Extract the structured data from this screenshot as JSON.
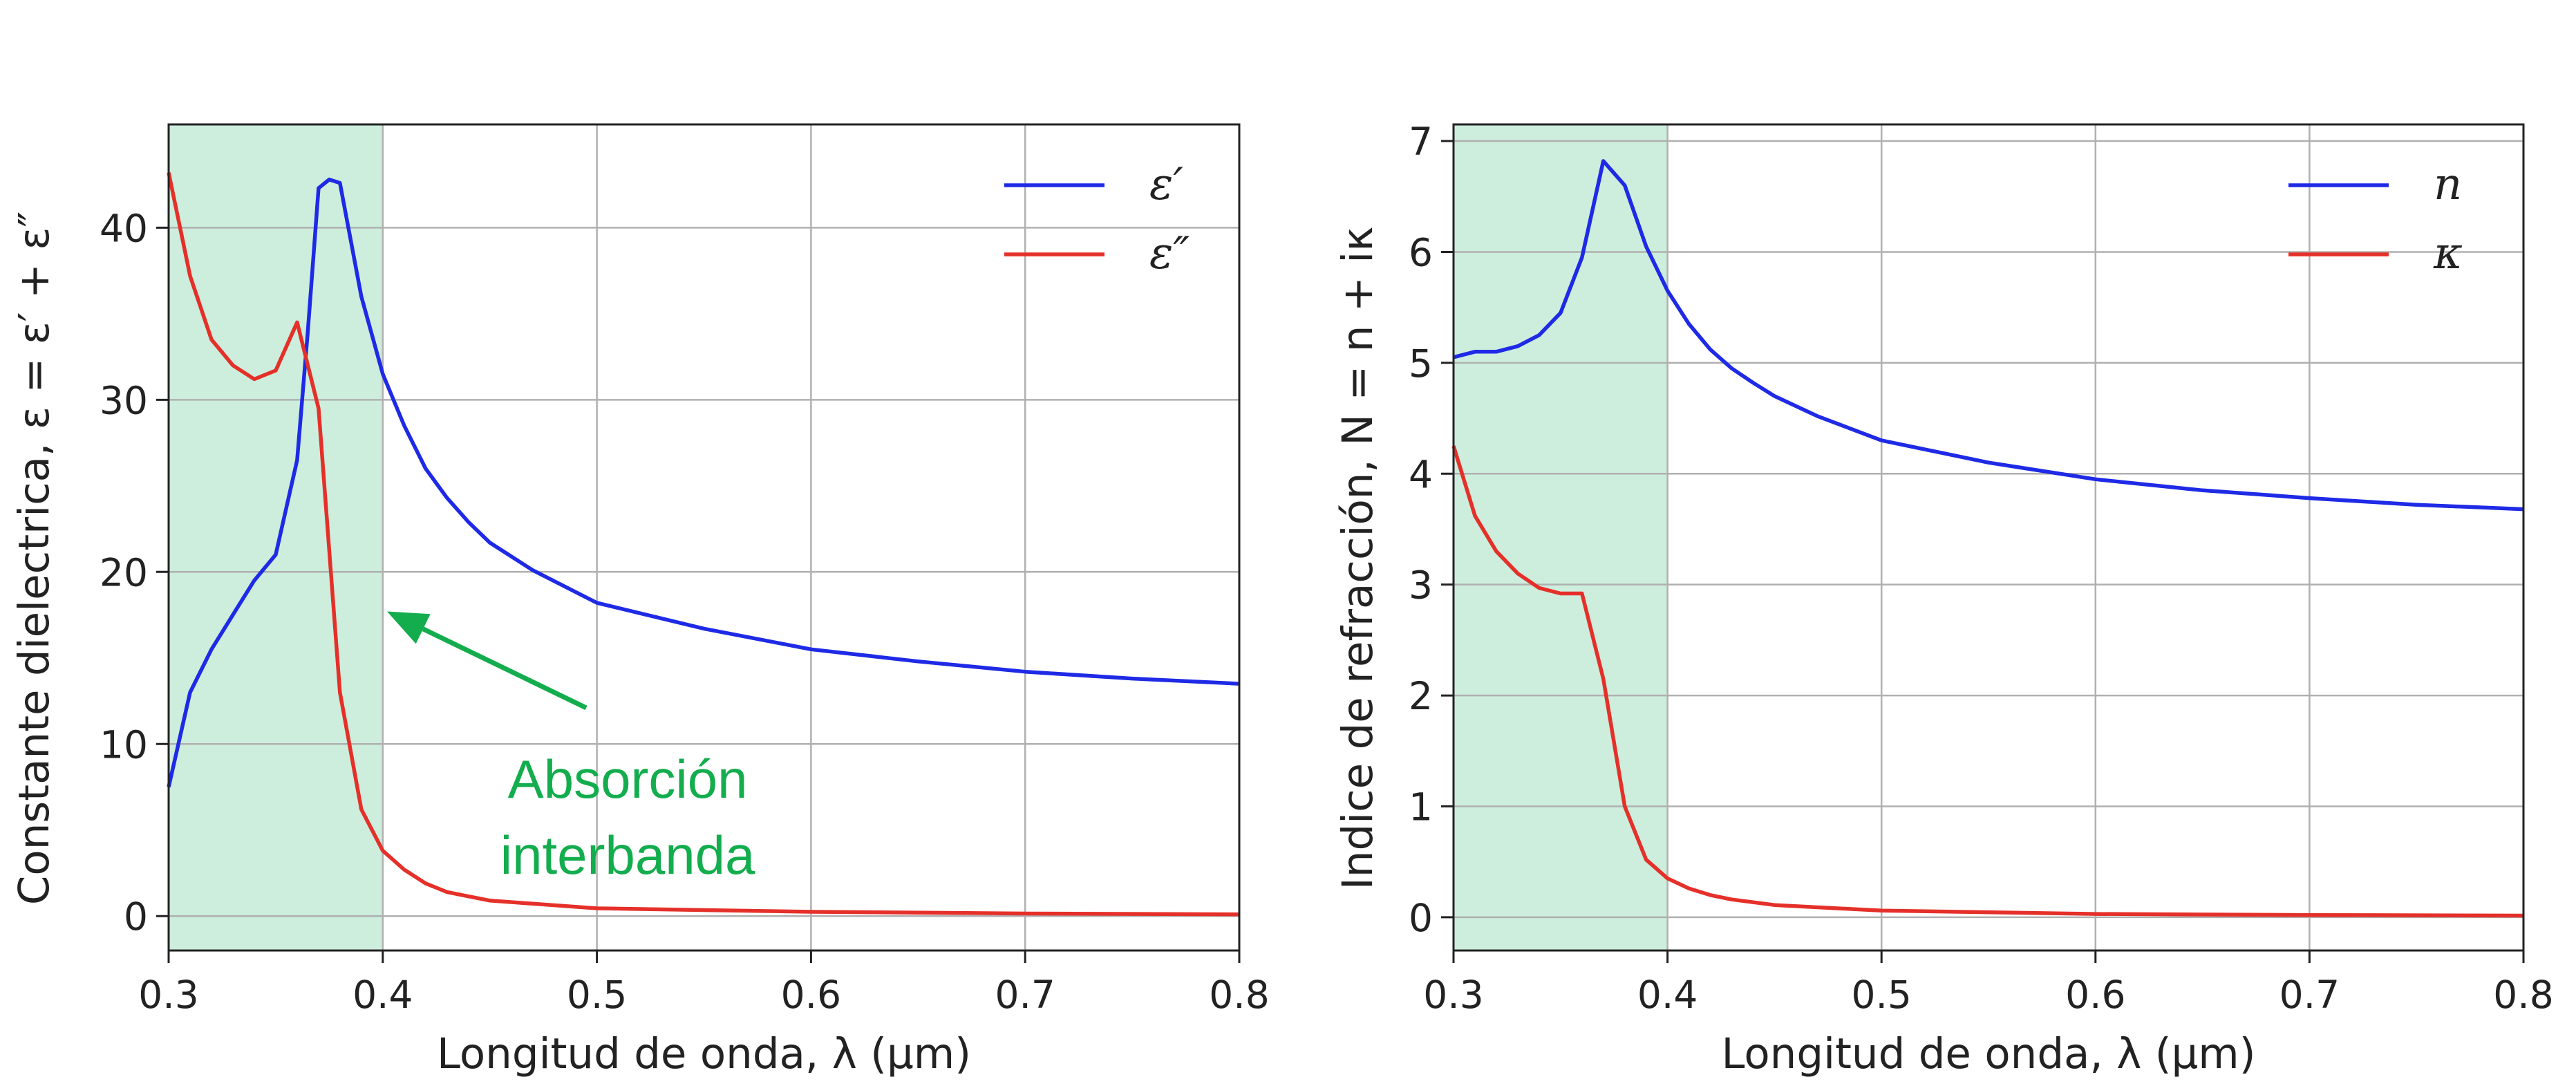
{
  "chart_data": [
    {
      "type": "line",
      "xlabel": "Longitud de onda, λ (μm)",
      "ylabel": "Constante dielectrica, ε = ε′ + ε″",
      "xlim": [
        0.3,
        0.8
      ],
      "ylim": [
        -2,
        46
      ],
      "x_ticks": [
        "0.3",
        "0.4",
        "0.5",
        "0.6",
        "0.7",
        "0.8"
      ],
      "y_ticks": [
        "0",
        "10",
        "20",
        "30",
        "40"
      ],
      "grid": true,
      "legend_position": "top-right",
      "shaded_region": {
        "from": 0.3,
        "to": 0.4,
        "color": "#cdeedd"
      },
      "annotation": {
        "lines": [
          "Absorción",
          "interbanda"
        ],
        "color": "#13ad4e",
        "arrow_to": [
          0.402,
          17.7
        ],
        "arrow_from": [
          0.495,
          12.1
        ]
      },
      "series": [
        {
          "name": "ε′",
          "color": "#1f2ae6",
          "x": [
            0.3,
            0.31,
            0.32,
            0.33,
            0.34,
            0.35,
            0.36,
            0.365,
            0.37,
            0.375,
            0.38,
            0.39,
            0.4,
            0.41,
            0.42,
            0.43,
            0.44,
            0.45,
            0.47,
            0.5,
            0.55,
            0.6,
            0.65,
            0.7,
            0.75,
            0.8
          ],
          "y": [
            7.5,
            13,
            15.5,
            17.5,
            19.5,
            21,
            26.5,
            34,
            42.3,
            42.8,
            42.6,
            36,
            31.5,
            28.5,
            26,
            24.3,
            22.9,
            21.7,
            20.1,
            18.2,
            16.7,
            15.5,
            14.8,
            14.2,
            13.8,
            13.5
          ]
        },
        {
          "name": "ε″",
          "color": "#e5302a",
          "x": [
            0.3,
            0.31,
            0.32,
            0.33,
            0.34,
            0.35,
            0.36,
            0.37,
            0.38,
            0.39,
            0.4,
            0.41,
            0.42,
            0.43,
            0.45,
            0.5,
            0.6,
            0.7,
            0.8
          ],
          "y": [
            43.2,
            37.2,
            33.5,
            32,
            31.2,
            31.7,
            34.5,
            29.5,
            13,
            6.2,
            3.8,
            2.7,
            1.9,
            1.4,
            0.9,
            0.45,
            0.25,
            0.15,
            0.1
          ]
        }
      ]
    },
    {
      "type": "line",
      "xlabel": "Longitud de onda, λ (μm)",
      "ylabel": "Indice de refracción, N = n + iκ",
      "xlim": [
        0.3,
        0.8
      ],
      "ylim": [
        -0.3,
        7.15
      ],
      "x_ticks": [
        "0.3",
        "0.4",
        "0.5",
        "0.6",
        "0.7",
        "0.8"
      ],
      "y_ticks": [
        "0",
        "1",
        "2",
        "3",
        "4",
        "5",
        "6",
        "7"
      ],
      "grid": true,
      "legend_position": "top-right",
      "shaded_region": {
        "from": 0.3,
        "to": 0.4,
        "color": "#cdeedd"
      },
      "series": [
        {
          "name": "n",
          "color": "#1f2ae6",
          "x": [
            0.3,
            0.31,
            0.32,
            0.33,
            0.34,
            0.35,
            0.36,
            0.37,
            0.38,
            0.39,
            0.4,
            0.41,
            0.42,
            0.43,
            0.44,
            0.45,
            0.47,
            0.5,
            0.55,
            0.6,
            0.65,
            0.7,
            0.75,
            0.8
          ],
          "y": [
            5.05,
            5.1,
            5.1,
            5.15,
            5.25,
            5.45,
            5.95,
            6.82,
            6.6,
            6.05,
            5.65,
            5.35,
            5.12,
            4.95,
            4.82,
            4.7,
            4.52,
            4.3,
            4.1,
            3.95,
            3.85,
            3.78,
            3.72,
            3.68
          ]
        },
        {
          "name": "κ",
          "color": "#e5302a",
          "x": [
            0.3,
            0.31,
            0.32,
            0.33,
            0.34,
            0.35,
            0.36,
            0.37,
            0.38,
            0.39,
            0.4,
            0.41,
            0.42,
            0.43,
            0.45,
            0.5,
            0.6,
            0.7,
            0.8
          ],
          "y": [
            4.25,
            3.62,
            3.3,
            3.1,
            2.97,
            2.92,
            2.92,
            2.15,
            1.0,
            0.52,
            0.35,
            0.26,
            0.2,
            0.16,
            0.11,
            0.06,
            0.03,
            0.02,
            0.015
          ]
        }
      ]
    }
  ]
}
